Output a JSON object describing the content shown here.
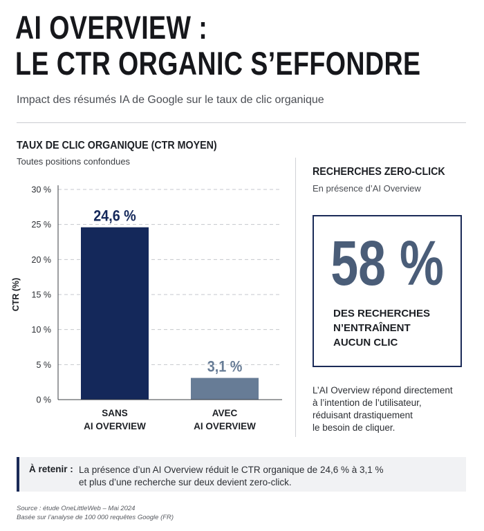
{
  "header": {
    "title_line1": "AI OVERVIEW :",
    "title_line2": "LE CTR ORGANIC S’EFFONDRE",
    "subtitle": "Impact des résumés IA de Google sur le taux de clic organique"
  },
  "chart_data": {
    "type": "bar",
    "title": "TAUX DE CLIC ORGANIQUE (CTR MOYEN)",
    "subtitle": "Toutes positions confondues",
    "ylabel": "CTR (%)",
    "xlabel": "",
    "ylim": [
      0,
      30
    ],
    "yticks": [
      0,
      5,
      10,
      15,
      20,
      25,
      30
    ],
    "ytick_labels": [
      "0 %",
      "5 %",
      "10 %",
      "15 %",
      "20 %",
      "25 %",
      "30 %"
    ],
    "grid": "horizontal dashed",
    "categories": [
      {
        "line1": "SANS",
        "line2": "AI OVERVIEW"
      },
      {
        "line1": "AVEC",
        "line2": "AI OVERVIEW"
      }
    ],
    "values": [
      24.6,
      3.1
    ],
    "value_labels": [
      "24,6 %",
      "3,1 %"
    ],
    "bar_colors": [
      "#14285a",
      "#677c96"
    ],
    "value_label_colors": [
      "#14285a",
      "#677c96"
    ]
  },
  "zero_click": {
    "title": "RECHERCHES ZERO-CLICK",
    "subtitle": "En présence d’AI Overview",
    "big_value": "58 %",
    "caption_lines": [
      "DES RECHERCHES",
      "N’ENTRAÎNENT",
      "AUCUN CLIC"
    ],
    "description_lines": [
      "L’AI Overview répond directement",
      "à l’intention de l’utilisateur,",
      "réduisant drastiquement",
      "le besoin de cliquer."
    ]
  },
  "callout": {
    "label": "À retenir :",
    "line1": "La présence d’un AI Overview réduit le CTR organique de 24,6 % à 3,1 %",
    "line2": "et plus d’une recherche sur deux devient zero-click."
  },
  "source": {
    "line1": "Source : étude OneLittleWeb – Mai 2024",
    "line2": "Basée sur l’analyse de 100 000 requêtes Google (FR)"
  }
}
